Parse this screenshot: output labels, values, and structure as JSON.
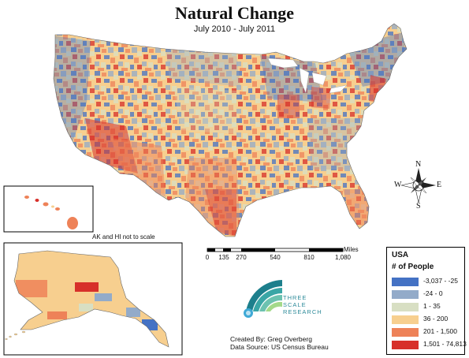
{
  "title": "Natural Change",
  "subtitle": "July 2010 - July 2011",
  "inset_note": "AK and HI not to scale",
  "legend": {
    "region": "USA",
    "heading": "# of People",
    "items": [
      {
        "label": "-3,037 - -25",
        "color": "#4472c4"
      },
      {
        "label": "-24 - 0",
        "color": "#93abc9"
      },
      {
        "label": "1 - 35",
        "color": "#d8dfc3"
      },
      {
        "label": "36 - 200",
        "color": "#f7cf8f"
      },
      {
        "label": "201 - 1,500",
        "color": "#ee8258"
      },
      {
        "label": "1,501 - 74,813",
        "color": "#d7302a"
      }
    ]
  },
  "scale_bar": {
    "unit": "Miles",
    "labels": [
      "0",
      "135",
      "270",
      "540",
      "810",
      "1,080"
    ]
  },
  "compass": {
    "n": "N",
    "s": "S",
    "e": "E",
    "w": "W"
  },
  "logo": {
    "line1": "THREE",
    "line2": "SCALE",
    "line3": "RESEARCH"
  },
  "credits": {
    "created_by": "Created By: Greg Overberg",
    "data_source": "Data Source: US Census Bureau"
  }
}
